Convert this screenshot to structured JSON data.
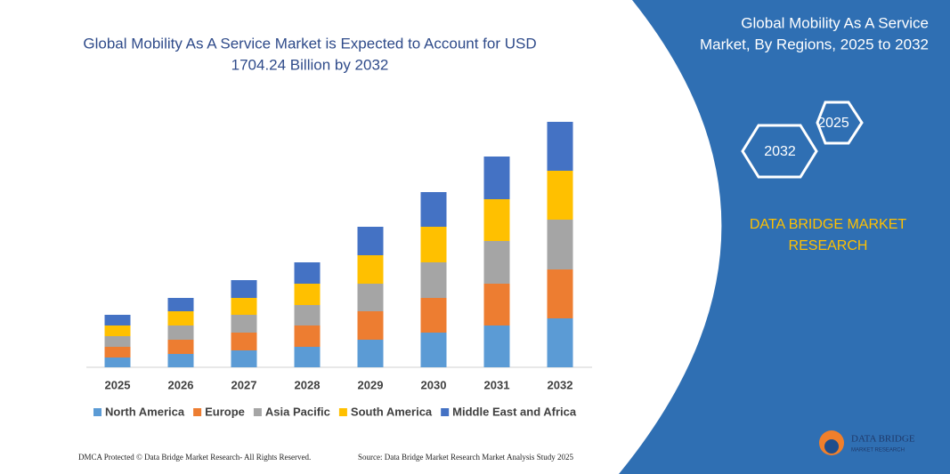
{
  "chart_data": {
    "type": "bar",
    "stacked": true,
    "title": [
      "Global Mobility As A Service Market is Expected to Account for USD",
      "1704.24 Billion by 2032"
    ],
    "categories": [
      "2025",
      "2026",
      "2027",
      "2028",
      "2029",
      "2030",
      "2031",
      "2032"
    ],
    "series": [
      {
        "name": "North America",
        "color": "#5b9bd5",
        "values": [
          11,
          15,
          19,
          23,
          31,
          39,
          47,
          55
        ]
      },
      {
        "name": "Europe",
        "color": "#ed7d31",
        "values": [
          12,
          16,
          20,
          24,
          32,
          39,
          47,
          55
        ]
      },
      {
        "name": "Asia Pacific",
        "color": "#a5a5a5",
        "values": [
          12,
          16,
          20,
          23,
          31,
          40,
          48,
          56
        ]
      },
      {
        "name": "South America",
        "color": "#ffc000",
        "values": [
          12,
          16,
          19,
          24,
          32,
          40,
          47,
          55
        ]
      },
      {
        "name": "Middle East and Africa",
        "color": "#4472c4",
        "values": [
          12,
          15,
          20,
          24,
          32,
          39,
          48,
          55
        ]
      }
    ]
  },
  "panel": {
    "title": [
      "Global Mobility As A Service",
      "Market, By Regions, 2025 to 2032"
    ],
    "hexagons": [
      "2025",
      "2032"
    ],
    "brand": [
      "DATA BRIDGE MARKET",
      "RESEARCH"
    ]
  },
  "footer": {
    "left": "DMCA Protected © Data Bridge Market Research-  All Rights Reserved.",
    "right": "Source: Data Bridge Market Research  Market Analysis Study 2025"
  },
  "logo": {
    "name": "DATA BRIDGE",
    "tagline": "MARKET RESEARCH"
  }
}
